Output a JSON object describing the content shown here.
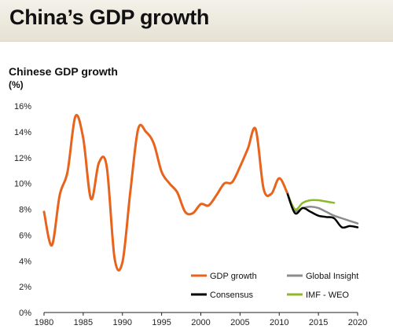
{
  "page": {
    "title": "China’s GDP growth"
  },
  "chart_data": {
    "type": "line",
    "title": "Chinese GDP growth",
    "ylabel": "(%)",
    "xlabel": "",
    "xlim": [
      1980,
      2020
    ],
    "ylim": [
      0,
      16
    ],
    "x_ticks": [
      1980,
      1985,
      1990,
      1995,
      2000,
      2005,
      2010,
      2015,
      2020
    ],
    "y_ticks": [
      "0%",
      "2%",
      "4%",
      "6%",
      "8%",
      "10%",
      "12%",
      "14%",
      "16%"
    ],
    "grid": "none",
    "legend_position": "bottom-right",
    "series": [
      {
        "name": "GDP growth",
        "color": "#e8631c",
        "points": [
          [
            1980,
            7.8
          ],
          [
            1981,
            5.2
          ],
          [
            1982,
            9.1
          ],
          [
            1983,
            10.9
          ],
          [
            1984,
            15.2
          ],
          [
            1985,
            13.5
          ],
          [
            1986,
            8.8
          ],
          [
            1987,
            11.6
          ],
          [
            1988,
            11.3
          ],
          [
            1989,
            4.2
          ],
          [
            1990,
            3.9
          ],
          [
            1991,
            9.3
          ],
          [
            1992,
            14.2
          ],
          [
            1993,
            14.0
          ],
          [
            1994,
            13.1
          ],
          [
            1995,
            10.9
          ],
          [
            1996,
            10.0
          ],
          [
            1997,
            9.3
          ],
          [
            1998,
            7.8
          ],
          [
            1999,
            7.7
          ],
          [
            2000,
            8.4
          ],
          [
            2001,
            8.3
          ],
          [
            2002,
            9.1
          ],
          [
            2003,
            10.0
          ],
          [
            2004,
            10.1
          ],
          [
            2005,
            11.3
          ],
          [
            2006,
            12.7
          ],
          [
            2007,
            14.2
          ],
          [
            2008,
            9.6
          ],
          [
            2009,
            9.2
          ],
          [
            2010,
            10.4
          ],
          [
            2011,
            9.3
          ]
        ]
      },
      {
        "name": "Global Insight",
        "color": "#8c8c8c",
        "points": [
          [
            2011,
            9.3
          ],
          [
            2012,
            7.9
          ],
          [
            2013,
            8.1
          ],
          [
            2014,
            8.2
          ],
          [
            2015,
            8.1
          ],
          [
            2016,
            7.8
          ],
          [
            2017,
            7.5
          ],
          [
            2018,
            7.3
          ],
          [
            2019,
            7.1
          ],
          [
            2020,
            6.9
          ]
        ]
      },
      {
        "name": "Consensus",
        "color": "#000000",
        "points": [
          [
            2011,
            9.3
          ],
          [
            2012,
            7.7
          ],
          [
            2013,
            8.1
          ],
          [
            2014,
            7.8
          ],
          [
            2015,
            7.5
          ],
          [
            2016,
            7.4
          ],
          [
            2017,
            7.3
          ],
          [
            2018,
            6.6
          ],
          [
            2019,
            6.7
          ],
          [
            2020,
            6.6
          ]
        ]
      },
      {
        "name": "IMF - WEO",
        "color": "#8cb82b",
        "points": [
          [
            2011,
            9.3
          ],
          [
            2012,
            8.0
          ],
          [
            2013,
            8.5
          ],
          [
            2014,
            8.7
          ],
          [
            2015,
            8.7
          ],
          [
            2016,
            8.6
          ],
          [
            2017,
            8.5
          ]
        ]
      }
    ]
  }
}
